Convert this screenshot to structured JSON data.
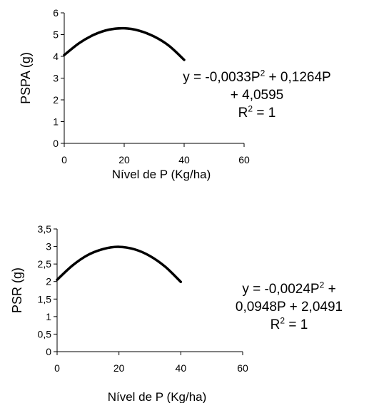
{
  "chart_data": [
    {
      "type": "line",
      "x": [
        0,
        5,
        10,
        15,
        20,
        25,
        30,
        35,
        40
      ],
      "series": [
        {
          "values": [
            4.06,
            4.61,
            5.0,
            5.23,
            5.29,
            5.18,
            4.91,
            4.48,
            3.84
          ]
        }
      ],
      "xlabel": "Nível de P (Kg/ha)",
      "ylabel": "PSPA  (g)",
      "xlim": [
        0,
        60
      ],
      "ylim": [
        0,
        6
      ],
      "xticks": [
        "0",
        "20",
        "40",
        "60"
      ],
      "yticks": [
        "0",
        "1",
        "2",
        "3",
        "4",
        "5",
        "6"
      ],
      "equation": {
        "line1_a": "y = -0,0033P",
        "line1_sup": "2",
        "line1_b": " + 0,1264P",
        "line2": "+ 4,0595",
        "r2_a": "R",
        "r2_sup": "2",
        "r2_b": " = 1"
      }
    },
    {
      "type": "line",
      "x": [
        0,
        5,
        10,
        15,
        20,
        25,
        30,
        35,
        40
      ],
      "series": [
        {
          "values": [
            2.05,
            2.46,
            2.76,
            2.93,
            2.99,
            2.92,
            2.73,
            2.42,
            1.99
          ]
        }
      ],
      "xlabel": "Nível de P (Kg/ha)",
      "ylabel": "PSR (g)",
      "xlim": [
        0,
        60
      ],
      "ylim": [
        0,
        3.5
      ],
      "xticks": [
        "0",
        "20",
        "40",
        "60"
      ],
      "yticks": [
        "0",
        "0,5",
        "1",
        "1,5",
        "2",
        "2,5",
        "3",
        "3,5"
      ],
      "equation": {
        "line1_a": "y = -0,0024P",
        "line1_sup": "2",
        "line1_b": " +",
        "line2": "0,0948P + 2,0491",
        "r2_a": "R",
        "r2_sup": "2",
        "r2_b": " = 1"
      }
    }
  ]
}
